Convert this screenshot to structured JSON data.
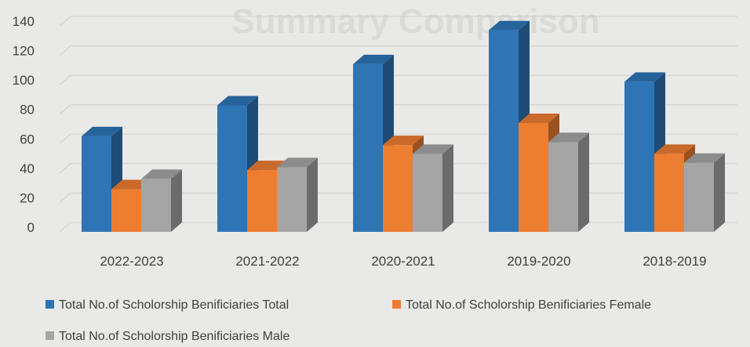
{
  "chart_data": {
    "type": "bar",
    "title": "",
    "xlabel": "",
    "ylabel": "",
    "ylim": [
      0,
      140
    ],
    "yticks": [
      0,
      20,
      40,
      60,
      80,
      100,
      120,
      140
    ],
    "categories": [
      "2022-2023",
      "2021-2022",
      "2020-2021",
      "2019-2020",
      "2018-2019"
    ],
    "series": [
      {
        "name": "Total No.of Scholorship Benificiaries  Total",
        "color": "#2e75b6",
        "values": [
          65,
          86,
          114,
          137,
          102
        ]
      },
      {
        "name": "Total No.of Scholorship Benificiaries  Female",
        "color": "#ed7d31",
        "values": [
          29,
          42,
          59,
          74,
          53
        ]
      },
      {
        "name": "Total No.of Scholorship Benificiaries  Male",
        "color": "#a5a5a5",
        "values": [
          36,
          44,
          53,
          61,
          47
        ]
      }
    ],
    "grid": true,
    "legend_position": "bottom",
    "style": "3d-column"
  },
  "watermark_text": "Summary Comparison"
}
